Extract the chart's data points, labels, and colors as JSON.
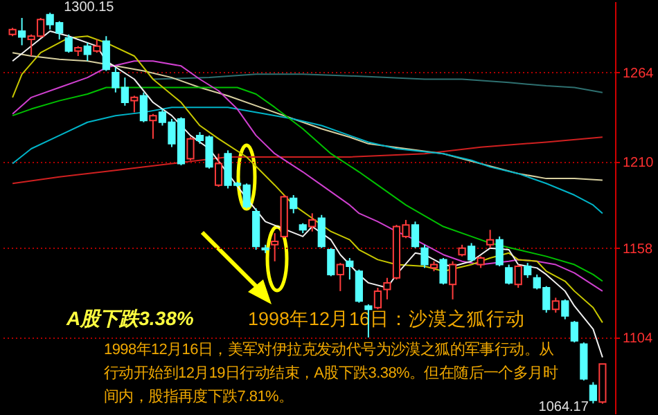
{
  "chart_data": {
    "type": "candlestick",
    "categories": [
      null,
      null,
      null,
      null,
      null,
      null,
      null,
      null,
      null,
      null,
      null,
      null,
      null,
      null,
      null,
      null,
      null,
      null,
      null,
      null,
      null,
      null,
      null,
      null,
      null,
      null,
      null,
      null,
      null,
      null,
      null,
      null,
      null,
      null,
      null,
      null,
      null,
      null,
      null,
      null,
      null,
      null,
      null,
      null,
      null,
      null,
      null,
      null,
      null,
      null,
      null,
      null,
      null,
      null,
      null,
      null,
      null,
      null,
      null,
      null,
      null,
      null,
      null,
      null
    ],
    "ohlc": [
      [
        1287,
        1291,
        1286,
        1290
      ],
      [
        1289,
        1297,
        1280.5,
        1285.5
      ],
      [
        1284,
        1287,
        1274,
        1286
      ],
      [
        1286,
        1297,
        1285,
        1296
      ],
      [
        1299,
        1300.15,
        1290,
        1293
      ],
      [
        1294,
        1295,
        1284,
        1288
      ],
      [
        1285,
        1287,
        1276,
        1277
      ],
      [
        1277,
        1280,
        1274,
        1279
      ],
      [
        1280,
        1282,
        1271,
        1275
      ],
      [
        1277,
        1284,
        1276,
        1280
      ],
      [
        1283,
        1286,
        1265,
        1266
      ],
      [
        1264,
        1267,
        1252,
        1255
      ],
      [
        1255,
        1261,
        1244,
        1246
      ],
      [
        1247,
        1250,
        1240,
        1249
      ],
      [
        1250,
        1252,
        1234,
        1235
      ],
      [
        1235,
        1239,
        1224,
        1238
      ],
      [
        1240,
        1242,
        1232,
        1234
      ],
      [
        1234,
        1236,
        1219,
        1221
      ],
      [
        1236,
        1237,
        1208,
        1209
      ],
      [
        1212,
        1225,
        1211,
        1224
      ],
      [
        1226,
        1228,
        1221,
        1223
      ],
      [
        1225,
        1226,
        1206,
        1207
      ],
      [
        1196,
        1215,
        1195,
        1209
      ],
      [
        1215,
        1217,
        1194,
        1196
      ],
      [
        1197,
        1198,
        1195,
        1196
      ],
      [
        1196,
        1197,
        1182,
        1183
      ],
      [
        1180,
        1182,
        1157,
        1159
      ],
      [
        1158,
        1160,
        1155,
        1157
      ],
      [
        1160,
        1167,
        1150,
        1162
      ],
      [
        1165,
        1190,
        1164,
        1189
      ],
      [
        1188,
        1190,
        1179,
        1182
      ],
      [
        1172,
        1173,
        1167,
        1169
      ],
      [
        1171,
        1179,
        1168,
        1175
      ],
      [
        1176,
        1178,
        1158,
        1159
      ],
      [
        1157,
        1158,
        1141,
        1142
      ],
      [
        1142,
        1149,
        1132,
        1148
      ],
      [
        1150,
        1152,
        1139,
        1147
      ],
      [
        1144,
        1145,
        1125,
        1126
      ],
      [
        1123,
        1124,
        1104,
        1121
      ],
      [
        1122,
        1134,
        1121,
        1132
      ],
      [
        1133,
        1140,
        1127,
        1137
      ],
      [
        1140,
        1172,
        1139,
        1171
      ],
      [
        1165,
        1175,
        1164,
        1172
      ],
      [
        1172,
        1174,
        1158,
        1159
      ],
      [
        1158,
        1160,
        1146,
        1148
      ],
      [
        1146,
        1150,
        1144,
        1148
      ],
      [
        1151,
        1152,
        1136,
        1137
      ],
      [
        1136,
        1150,
        1127,
        1148
      ],
      [
        1154,
        1160,
        1153,
        1158
      ],
      [
        1159,
        1161,
        1150,
        1151
      ],
      [
        1148,
        1153,
        1146,
        1152
      ],
      [
        1160,
        1169,
        1158,
        1163
      ],
      [
        1163,
        1165,
        1147,
        1148
      ],
      [
        1146,
        1148,
        1136,
        1137
      ],
      [
        1136,
        1148,
        1134,
        1147
      ],
      [
        1147,
        1149,
        1140,
        1142
      ],
      [
        1140,
        1142,
        1133,
        1134
      ],
      [
        1134,
        1135,
        1119,
        1121
      ],
      [
        1121,
        1128,
        1119,
        1126
      ],
      [
        1126,
        1127,
        1115,
        1117
      ],
      [
        1113,
        1114,
        1101,
        1102
      ],
      [
        1100,
        1101,
        1078,
        1079
      ],
      [
        1075,
        1077,
        1064.17,
        1066
      ],
      [
        1065,
        1088,
        1064,
        1088
      ]
    ],
    "series": [
      {
        "type": "line",
        "color": "#2e7070",
        "values": [
          null,
          null,
          null,
          null,
          null,
          null,
          null,
          null,
          null,
          null,
          null,
          null,
          null,
          null,
          null,
          1260,
          null,
          null,
          null,
          null,
          null,
          1261,
          null,
          null,
          null,
          null,
          1263,
          null,
          null,
          null,
          null,
          1263,
          null,
          null,
          null,
          null,
          1262,
          null,
          null,
          null,
          1261,
          null,
          null,
          null,
          1260,
          null,
          null,
          null,
          1260,
          null,
          null,
          null,
          null,
          1258,
          null,
          null,
          null,
          1256,
          null,
          null,
          1255,
          null,
          null,
          1252
        ]
      },
      {
        "type": "line",
        "color": "#d02020",
        "values": [
          1197,
          null,
          null,
          null,
          null,
          1201,
          null,
          null,
          null,
          null,
          null,
          1205,
          null,
          null,
          null,
          null,
          null,
          1209,
          null,
          null,
          null,
          null,
          null,
          1213,
          null,
          null,
          null,
          null,
          null,
          null,
          null,
          null,
          null,
          null,
          null,
          null,
          1213,
          null,
          null,
          null,
          null,
          null,
          null,
          null,
          1215,
          null,
          null,
          null,
          null,
          null,
          1219,
          null,
          null,
          null,
          null,
          null,
          null,
          1222,
          null,
          null,
          null,
          null,
          null,
          1225
        ]
      },
      {
        "type": "line",
        "color": "#d8d0a0",
        "values": [
          1276,
          null,
          1274,
          null,
          null,
          1272,
          null,
          null,
          1271,
          null,
          null,
          1268,
          null,
          null,
          1265,
          null,
          null,
          1261,
          null,
          null,
          1255,
          null,
          null,
          1250,
          null,
          null,
          null,
          1242,
          null,
          null,
          1236,
          null,
          null,
          1230,
          null,
          null,
          1225,
          null,
          1221,
          null,
          null,
          null,
          null,
          null,
          null,
          null,
          1215,
          null,
          null,
          null,
          null,
          null,
          null,
          null,
          1203,
          null,
          null,
          1200,
          null,
          null,
          1200,
          null,
          null,
          1199
        ]
      },
      {
        "type": "line",
        "color": "#00b4c8",
        "values": [
          1209,
          null,
          1218,
          null,
          null,
          1226,
          null,
          null,
          1234,
          null,
          null,
          1238,
          null,
          null,
          1240,
          null,
          null,
          1243,
          null,
          null,
          null,
          null,
          null,
          1243,
          null,
          null,
          null,
          1239,
          null,
          null,
          1236,
          null,
          null,
          1232,
          null,
          null,
          1226,
          null,
          1222,
          null,
          null,
          1218,
          null,
          null,
          null,
          null,
          1215,
          null,
          null,
          1211,
          null,
          1207,
          null,
          null,
          1203,
          null,
          null,
          1197,
          null,
          null,
          1190,
          null,
          1184,
          1179
        ]
      },
      {
        "type": "line",
        "color": "#00c000",
        "values": [
          1238,
          null,
          1242,
          null,
          null,
          1247,
          null,
          null,
          1251,
          null,
          1255,
          null,
          null,
          1255,
          null,
          null,
          null,
          null,
          null,
          null,
          1255,
          null,
          null,
          null,
          1255,
          null,
          1251,
          null,
          1243,
          null,
          null,
          1230,
          null,
          null,
          1215,
          null,
          null,
          1204,
          null,
          1196,
          null,
          null,
          1184,
          null,
          null,
          null,
          1171,
          null,
          null,
          1165,
          null,
          1161,
          null,
          null,
          1157,
          null,
          null,
          1153,
          null,
          null,
          1148,
          null,
          1142,
          1138
        ]
      },
      {
        "type": "line",
        "color": "#d040d0",
        "values": [
          1239,
          null,
          1249,
          null,
          null,
          1255,
          null,
          null,
          1261,
          null,
          1267,
          null,
          null,
          1271,
          null,
          1271,
          null,
          null,
          1268,
          null,
          1260,
          null,
          1253,
          null,
          1242,
          null,
          1226,
          null,
          1215,
          null,
          null,
          1204,
          null,
          1196,
          null,
          null,
          1184,
          1179,
          null,
          1174,
          null,
          1168,
          null,
          1163,
          null,
          null,
          1154,
          null,
          1150,
          null,
          1148,
          null,
          null,
          1150,
          1151,
          null,
          1150,
          null,
          1148,
          null,
          1143,
          null,
          null,
          1132
        ]
      },
      {
        "type": "line",
        "color": "#c8c800",
        "values": [
          1249,
          1263,
          null,
          1276,
          null,
          null,
          1285,
          null,
          1286,
          null,
          1282,
          null,
          null,
          1274,
          null,
          1260,
          null,
          null,
          1246,
          null,
          1232,
          null,
          1224,
          null,
          null,
          1213,
          null,
          null,
          1196,
          null,
          1184,
          null,
          1176,
          null,
          1168,
          null,
          1163,
          1157,
          null,
          1151,
          null,
          1148,
          null,
          null,
          1147,
          null,
          1144,
          null,
          null,
          1148,
          null,
          1152,
          null,
          1155,
          1151,
          null,
          1150,
          1144,
          null,
          1138,
          1132,
          null,
          1122,
          1113
        ]
      },
      {
        "type": "line",
        "color": "#f0f0f0",
        "values": [
          1271,
          null,
          null,
          null,
          1289,
          null,
          1286,
          null,
          null,
          1280,
          1271,
          null,
          null,
          1260,
          null,
          1246,
          null,
          1238,
          null,
          1226,
          null,
          1218,
          null,
          null,
          null,
          1188,
          null,
          1174,
          null,
          null,
          null,
          1165,
          1171,
          null,
          1163,
          1154,
          null,
          1142,
          1137,
          null,
          1134,
          1142,
          null,
          1155,
          1154,
          null,
          1148,
          1147,
          null,
          1150,
          1154,
          1158,
          null,
          1157,
          1148,
          null,
          1146,
          1142,
          null,
          1132,
          1123,
          null,
          1109,
          1092
        ]
      }
    ],
    "ylim": [
      1058,
      1307
    ],
    "yticks": [
      1104,
      1158,
      1210,
      1264
    ],
    "grid": "y",
    "annotations": [
      "A股下跌3.38%",
      "1998年12月16日：沙漠之狐行动",
      "1998年12月16日，美军对伊拉克发动代号为沙漠之狐的军事行动。从行动开始到12月19日行动结束，A股下跌3.38%。但在随后一个多月时间内，股指再度下跌7.81%。",
      "1300.15",
      "1064.17"
    ]
  }
}
